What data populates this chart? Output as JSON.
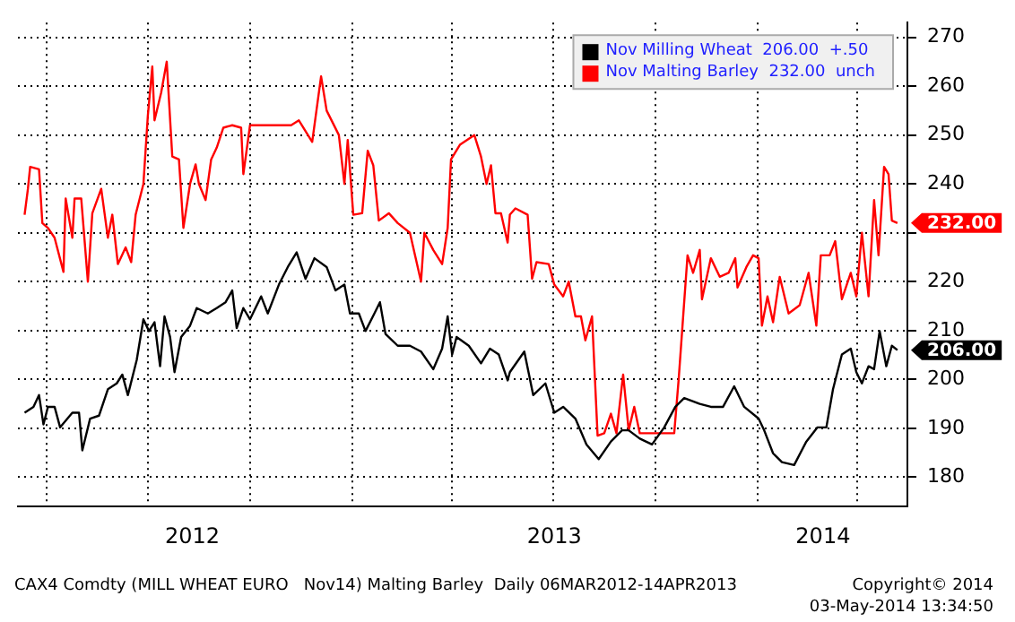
{
  "chart_data": {
    "type": "line",
    "xlim": [
      "2012-03-06",
      "2014-05-16"
    ],
    "xticks": [
      {
        "value": "2012-04-01",
        "label": null
      },
      {
        "value": "2012-07-01",
        "label": null
      },
      {
        "value": "2012-08-10",
        "label": "2012"
      },
      {
        "value": "2012-10-01",
        "label": null
      },
      {
        "value": "2013-01-01",
        "label": null
      },
      {
        "value": "2013-04-01",
        "label": null
      },
      {
        "value": "2013-07-01",
        "label": null
      },
      {
        "value": "2013-07-02",
        "label": "2013"
      },
      {
        "value": "2013-10-01",
        "label": null
      },
      {
        "value": "2014-01-01",
        "label": null
      },
      {
        "value": "2014-03-01",
        "label": "2014"
      },
      {
        "value": "2014-04-01",
        "label": null
      }
    ],
    "ylim": [
      174,
      273
    ],
    "yticks": [
      180,
      190,
      200,
      210,
      220,
      {
        "value": 230,
        "label": null
      },
      240,
      250,
      260,
      270
    ],
    "grid": true,
    "legend": "top right",
    "line_style": "solid",
    "series": [
      {
        "name": "Nov Milling Wheat  206.00  +.50",
        "color": "#000000",
        "x": [
          "2012-03-12",
          "2012-03-20",
          "2012-03-25",
          "2012-03-29",
          "2012-04-02",
          "2012-04-08",
          "2012-04-13",
          "2012-04-24",
          "2012-04-30",
          "2012-05-03",
          "2012-05-10",
          "2012-05-18",
          "2012-05-26",
          "2012-06-03",
          "2012-06-08",
          "2012-06-13",
          "2012-06-21",
          "2012-06-27",
          "2012-07-02",
          "2012-07-07",
          "2012-07-12",
          "2012-07-16",
          "2012-07-21",
          "2012-07-25",
          "2012-07-31",
          "2012-08-08",
          "2012-08-14",
          "2012-08-24",
          "2012-09-01",
          "2012-09-09",
          "2012-09-15",
          "2012-09-19",
          "2012-09-25",
          "2012-10-01",
          "2012-10-11",
          "2012-10-17",
          "2012-10-27",
          "2012-11-04",
          "2012-11-12",
          "2012-11-20",
          "2012-11-28",
          "2012-12-09",
          "2012-12-17",
          "2012-12-25",
          "2012-12-30",
          "2013-01-07",
          "2013-01-13",
          "2013-01-21",
          "2013-01-26",
          "2013-01-31",
          "2013-02-11",
          "2013-02-22",
          "2013-03-04",
          "2013-03-15",
          "2013-03-23",
          "2013-03-28",
          "2013-04-01",
          "2013-04-05",
          "2013-04-16",
          "2013-04-27",
          "2013-05-05",
          "2013-05-13",
          "2013-05-21",
          "2013-05-23",
          "2013-06-05",
          "2013-06-13",
          "2013-06-24",
          "2013-07-02",
          "2013-07-10",
          "2013-07-21",
          "2013-07-31",
          "2013-08-11",
          "2013-08-22",
          "2013-09-01",
          "2013-09-07",
          "2013-09-17",
          "2013-09-28",
          "2013-10-09",
          "2013-10-19",
          "2013-10-27",
          "2013-11-10",
          "2013-11-20",
          "2013-12-01",
          "2013-12-11",
          "2013-12-20",
          "2014-01-02",
          "2014-01-07",
          "2014-01-15",
          "2014-01-23",
          "2014-02-03",
          "2014-02-14",
          "2014-02-24",
          "2014-03-04",
          "2014-03-10",
          "2014-03-18",
          "2014-03-26",
          "2014-03-31",
          "2014-04-05",
          "2014-04-11",
          "2014-04-16",
          "2014-04-21",
          "2014-04-27",
          "2014-05-02",
          "2014-05-07"
        ],
        "values": [
          193.2,
          194.4,
          196.8,
          190.8,
          194.4,
          194.4,
          190.2,
          193.2,
          193.2,
          185.5,
          192,
          192.6,
          198,
          199.2,
          201,
          196.8,
          204,
          212.3,
          209.9,
          211.7,
          202.7,
          212.9,
          208.7,
          201.5,
          208.7,
          211,
          214.6,
          213.5,
          214.6,
          215.8,
          218.2,
          210.5,
          214.6,
          212.3,
          217,
          213.5,
          219.4,
          223,
          226,
          220.6,
          224.8,
          223,
          218.2,
          219.4,
          213.5,
          213.5,
          209.9,
          213.5,
          215.8,
          209.3,
          206.9,
          206.9,
          205.7,
          202.1,
          206.3,
          212.9,
          205.1,
          208.7,
          206.9,
          203.3,
          206.3,
          205.1,
          199.8,
          201.5,
          205.7,
          196.8,
          199.2,
          193.2,
          194.4,
          192,
          186.7,
          183.7,
          187.3,
          189.6,
          189.6,
          187.9,
          186.7,
          190.2,
          194.4,
          196.2,
          195,
          194.4,
          194.4,
          198.6,
          194.4,
          192,
          189.6,
          184.9,
          183.1,
          182.5,
          187.3,
          190.2,
          190.2,
          198,
          205.1,
          206.3,
          201.5,
          199.2,
          202.7,
          202.1,
          209.9,
          202.7,
          206.9,
          206
        ]
      },
      {
        "name": "Nov Malting Barley  232.00  unch",
        "color": "#ff0000",
        "x": [
          "2012-03-12",
          "2012-03-15",
          "2012-03-17",
          "2012-03-25",
          "2012-03-28",
          "2012-04-02",
          "2012-04-08",
          "2012-04-16",
          "2012-04-18",
          "2012-04-24",
          "2012-04-26",
          "2012-05-02",
          "2012-05-08",
          "2012-05-12",
          "2012-05-20",
          "2012-05-26",
          "2012-05-30",
          "2012-06-04",
          "2012-06-11",
          "2012-06-16",
          "2012-06-20",
          "2012-06-27",
          "2012-07-01",
          "2012-07-05",
          "2012-07-07",
          "2012-07-13",
          "2012-07-18",
          "2012-07-23",
          "2012-07-29",
          "2012-08-02",
          "2012-08-08",
          "2012-08-13",
          "2012-08-16",
          "2012-08-22",
          "2012-08-27",
          "2012-09-01",
          "2012-09-07",
          "2012-09-15",
          "2012-09-23",
          "2012-09-25",
          "2012-10-01",
          "2012-11-07",
          "2012-11-14",
          "2012-11-26",
          "2012-12-04",
          "2012-12-09",
          "2012-12-20",
          "2012-12-25",
          "2012-12-28",
          "2013-01-02",
          "2013-01-10",
          "2013-01-15",
          "2013-01-20",
          "2013-01-25",
          "2013-02-03",
          "2013-02-11",
          "2013-02-22",
          "2013-02-27",
          "2013-03-04",
          "2013-03-07",
          "2013-03-15",
          "2013-03-23",
          "2013-03-28",
          "2013-03-31",
          "2013-04-08",
          "2013-04-21",
          "2013-04-27",
          "2013-05-02",
          "2013-05-06",
          "2013-05-10",
          "2013-05-15",
          "2013-05-21",
          "2013-05-23",
          "2013-05-28",
          "2013-06-08",
          "2013-06-12",
          "2013-06-16",
          "2013-06-27",
          "2013-07-02",
          "2013-07-10",
          "2013-07-15",
          "2013-07-21",
          "2013-07-26",
          "2013-07-30",
          "2013-08-05",
          "2013-08-10",
          "2013-08-16",
          "2013-08-22",
          "2013-08-27",
          "2013-09-02",
          "2013-09-07",
          "2013-09-12",
          "2013-09-17",
          "2013-10-03",
          "2013-10-18",
          "2013-10-22",
          "2013-10-30",
          "2013-11-04",
          "2013-11-10",
          "2013-11-12",
          "2013-11-20",
          "2013-11-28",
          "2013-12-06",
          "2013-12-12",
          "2013-12-14",
          "2013-12-22",
          "2013-12-28",
          "2014-01-02",
          "2014-01-05",
          "2014-01-10",
          "2014-01-15",
          "2014-01-21",
          "2014-01-29",
          "2014-02-08",
          "2014-02-16",
          "2014-02-23",
          "2014-02-27",
          "2014-03-07",
          "2014-03-12",
          "2014-03-18",
          "2014-03-26",
          "2014-03-31",
          "2014-04-05",
          "2014-04-11",
          "2014-04-16",
          "2014-04-20",
          "2014-04-25",
          "2014-04-29",
          "2014-05-02",
          "2014-05-07"
        ],
        "values": [
          233.7,
          239,
          243.5,
          243,
          232,
          231,
          229,
          222,
          237,
          229,
          237,
          237,
          220,
          234,
          239,
          229,
          233.7,
          223.6,
          227,
          224,
          233.7,
          240,
          254,
          264,
          253,
          258.7,
          265,
          245.6,
          245,
          231,
          240,
          244,
          240,
          236.7,
          245,
          247.4,
          251.5,
          252,
          251.5,
          242,
          252,
          252,
          253,
          248.6,
          262,
          255,
          250,
          240,
          249,
          233.7,
          234,
          246.8,
          243.8,
          232.5,
          234,
          232,
          230,
          225,
          220,
          230,
          226.5,
          223.6,
          231,
          245,
          248,
          250,
          245.6,
          240,
          243.8,
          234,
          234,
          228,
          233.7,
          235,
          233.7,
          220.6,
          224,
          223.6,
          219.4,
          217,
          220,
          212.9,
          212.9,
          208,
          212.9,
          188.5,
          189,
          193,
          189,
          201,
          189.6,
          194.4,
          189,
          189,
          189,
          200,
          225.4,
          221.8,
          226.5,
          216.4,
          224.8,
          221,
          221.8,
          224.8,
          218.8,
          223,
          225.4,
          224.8,
          211,
          217,
          211.7,
          221,
          213.5,
          215.2,
          221.8,
          211,
          225.4,
          225.4,
          228.3,
          216.4,
          221.8,
          217,
          230,
          217,
          236.7,
          225.4,
          243.5,
          242,
          232.5,
          232
        ]
      }
    ],
    "annotations": [
      "206.00",
      "232.00",
      "CAX4 Comdty (MILL WHEAT EURO   Nov14) Malting Barley  Daily 06MAR2012-14APR2013",
      "Copyright© 2014",
      "03-May-2014 13:34:50"
    ]
  }
}
